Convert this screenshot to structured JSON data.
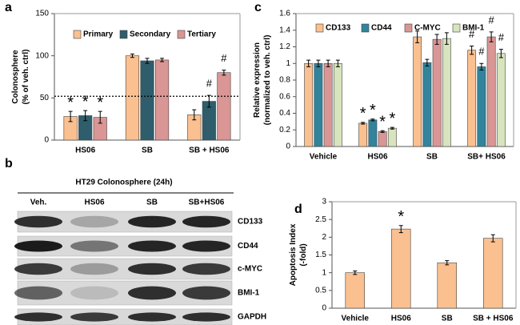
{
  "chart_data": [
    {
      "type": "bar",
      "label": "a",
      "y_label": [
        "Colonosphere",
        "(% of veh. ctrl)"
      ],
      "categories": [
        "HS06",
        "SB",
        "SB + HS06"
      ],
      "series": [
        {
          "name": "Primary",
          "color": "#fac090",
          "values": [
            28,
            100,
            30
          ],
          "errors": [
            6,
            2,
            6
          ],
          "markers": [
            "*",
            null,
            null
          ]
        },
        {
          "name": "Secondary",
          "color": "#2f5d6b",
          "values": [
            29,
            94,
            46
          ],
          "errors": [
            6,
            3,
            7
          ],
          "markers": [
            "*",
            null,
            "#"
          ]
        },
        {
          "name": "Tertiary",
          "color": "#da9694",
          "values": [
            27,
            95,
            80
          ],
          "errors": [
            7,
            2,
            3
          ],
          "markers": [
            "*",
            null,
            "#"
          ]
        }
      ],
      "ylim": [
        0,
        150
      ],
      "yticks": [
        0,
        50,
        100,
        150
      ],
      "reference_line": 52
    },
    {
      "type": "bar",
      "label": "c",
      "y_label": [
        "Relative expression",
        "(normalized to veh. ctrl)"
      ],
      "categories": [
        "Vehicle",
        "HS06",
        "SB",
        "SB+ HS06"
      ],
      "series": [
        {
          "name": "CD133",
          "color": "#fac090",
          "values": [
            1,
            0.28,
            1.32,
            1.16
          ],
          "errors": [
            0.04,
            0.01,
            0.07,
            0.05
          ],
          "markers": [
            null,
            "*",
            null,
            "#"
          ]
        },
        {
          "name": "CD44",
          "color": "#31849b",
          "values": [
            1,
            0.32,
            1.01,
            0.96
          ],
          "errors": [
            0.04,
            0.01,
            0.04,
            0.04
          ],
          "markers": [
            null,
            "*",
            null,
            "#"
          ]
        },
        {
          "name": "C-MYC",
          "color": "#da9694",
          "values": [
            1,
            0.18,
            1.29,
            1.32
          ],
          "errors": [
            0.04,
            0.01,
            0.06,
            0.06
          ],
          "markers": [
            null,
            "*",
            null,
            "#"
          ]
        },
        {
          "name": "BMI-1",
          "color": "#d7e4bd",
          "values": [
            1,
            0.22,
            1.3,
            1.12
          ],
          "errors": [
            0.04,
            0.01,
            0.07,
            0.05
          ],
          "markers": [
            null,
            "*",
            null,
            "#"
          ]
        }
      ],
      "ylim": [
        0,
        1.6
      ],
      "yticks": [
        0,
        0.2,
        0.4,
        0.6,
        0.8,
        1,
        1.2,
        1.4,
        1.6
      ]
    },
    {
      "type": "bar",
      "label": "d",
      "y_label": [
        "Apoptosis Index",
        "(-fold)"
      ],
      "categories": [
        "Vehicle",
        "HS06",
        "SB",
        "SB + HS06"
      ],
      "series": [
        {
          "color": "#fac090",
          "values": [
            1,
            2.23,
            1.28,
            1.97
          ],
          "errors": [
            0.05,
            0.1,
            0.06,
            0.1
          ],
          "markers": [
            null,
            "*",
            null,
            null
          ]
        }
      ],
      "ylim": [
        0,
        3
      ],
      "yticks": [
        0,
        0.5,
        1,
        1.5,
        2,
        2.5,
        3
      ]
    }
  ],
  "blot": {
    "label": "b",
    "title": "HT29 Colonosphere (24h)",
    "lanes": [
      "Veh.",
      "HS06",
      "SB",
      "SB+HS06"
    ],
    "proteins": [
      "CD133",
      "CD44",
      "c-MYC",
      "BMI-1",
      "GAPDH"
    ]
  }
}
